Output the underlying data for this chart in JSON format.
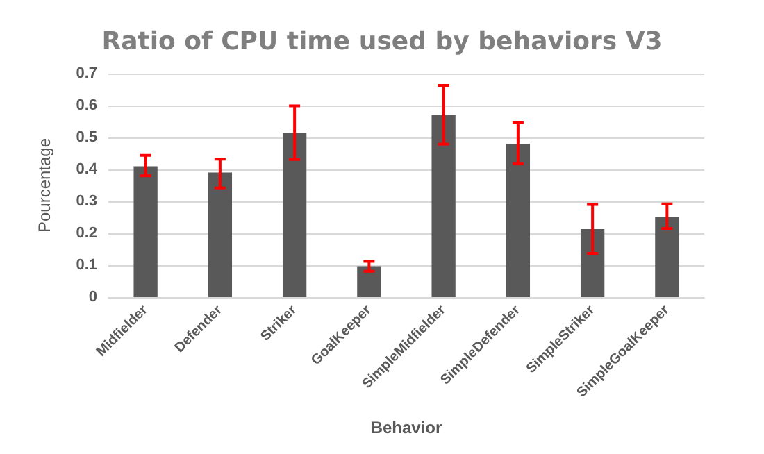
{
  "chart_data": {
    "type": "bar",
    "title": "Ratio of CPU time used by behaviors V3",
    "xlabel": "Behavior",
    "ylabel": "Pourcentage",
    "categories": [
      "Midfielder",
      "Defender",
      "Striker",
      "GoalKeeper",
      "SimpleMidfielder",
      "SimpleDefender",
      "SimpleStriker",
      "SimpleGoalKeeper"
    ],
    "values": [
      0.41,
      0.39,
      0.515,
      0.097,
      0.57,
      0.48,
      0.213,
      0.252
    ],
    "errors": [
      [
        0.38,
        0.444
      ],
      [
        0.342,
        0.432
      ],
      [
        0.431,
        0.599
      ],
      [
        0.081,
        0.112
      ],
      [
        0.479,
        0.663
      ],
      [
        0.417,
        0.546
      ],
      [
        0.137,
        0.29
      ],
      [
        0.215,
        0.292
      ]
    ],
    "color": "#595959",
    "ylim": [
      0,
      0.7
    ],
    "yticks": [
      0,
      0.1,
      0.2,
      0.3,
      0.4,
      0.5,
      0.6,
      0.7
    ],
    "grid": "y"
  }
}
